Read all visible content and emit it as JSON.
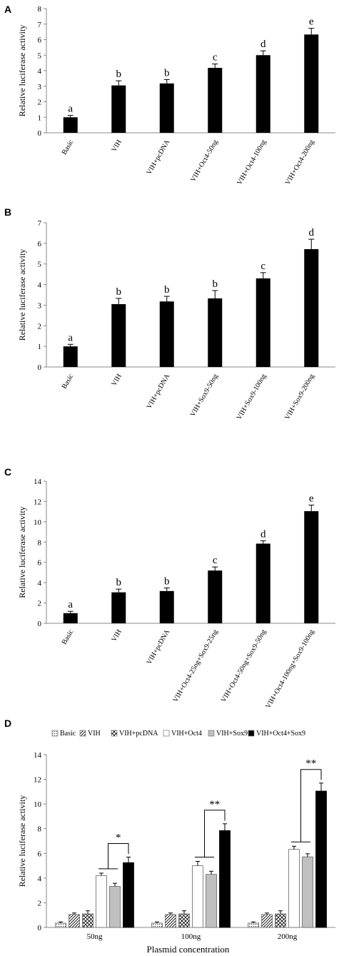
{
  "chart_data": [
    {
      "panel": "A",
      "type": "bar",
      "ylabel": "Relative luciferase activity",
      "ylim": [
        0,
        8
      ],
      "yticks": [
        0,
        1,
        2,
        3,
        4,
        5,
        6,
        7,
        8
      ],
      "categories": [
        "Basic",
        "VIH",
        "VIH+pcDNA",
        "VIH+Oct4-50ng",
        "VIH+Oct4-100ng",
        "VIH+Oct4-200ng"
      ],
      "values": [
        1.0,
        3.05,
        3.18,
        4.18,
        5.0,
        6.33
      ],
      "errors": [
        0.12,
        0.3,
        0.25,
        0.25,
        0.28,
        0.4
      ],
      "labels": [
        "a",
        "b",
        "b",
        "c",
        "d",
        "e"
      ],
      "colors": [
        "#000000"
      ]
    },
    {
      "panel": "B",
      "type": "bar",
      "ylabel": "Relative luciferase activity",
      "ylim": [
        0,
        7
      ],
      "yticks": [
        0,
        1,
        2,
        3,
        4,
        5,
        6,
        7
      ],
      "categories": [
        "Basic",
        "VIH",
        "VIH+pcDNA",
        "VIH+Sox9-50ng",
        "VIH+Sox9-100ng",
        "VIH+Sox9-200ng"
      ],
      "values": [
        1.0,
        3.05,
        3.18,
        3.33,
        4.3,
        5.72
      ],
      "errors": [
        0.1,
        0.28,
        0.25,
        0.38,
        0.28,
        0.48
      ],
      "labels": [
        "a",
        "b",
        "b",
        "b",
        "c",
        "d"
      ],
      "colors": [
        "#000000"
      ]
    },
    {
      "panel": "C",
      "type": "bar",
      "ylabel": "Relative luciferase activity",
      "ylim": [
        0,
        14
      ],
      "yticks": [
        0,
        2,
        4,
        6,
        8,
        10,
        12,
        14
      ],
      "categories": [
        "Basic",
        "VIH",
        "VIH+pcDNA",
        "VIH+Oct4-25ng+Sox9-25ng",
        "VIH+Oct4-50ng+Sox9-50ng",
        "VIH+Oct4-100ng+Sox9-100ng"
      ],
      "values": [
        1.0,
        3.05,
        3.18,
        5.2,
        7.85,
        11.05
      ],
      "errors": [
        0.18,
        0.32,
        0.3,
        0.35,
        0.28,
        0.6
      ],
      "labels": [
        "a",
        "b",
        "b",
        "c",
        "d",
        "e"
      ],
      "colors": [
        "#000000"
      ]
    },
    {
      "panel": "D",
      "type": "bar",
      "xlabel": "Plasmid concentration",
      "ylabel": "Relative luciferase activity",
      "ylim": [
        0,
        14
      ],
      "yticks": [
        0,
        2,
        4,
        6,
        8,
        10,
        12,
        14
      ],
      "categories": [
        "50ng",
        "100ng",
        "200ng"
      ],
      "legend_position": "top",
      "series": [
        {
          "name": "Basic",
          "values": [
            0.35,
            0.35,
            0.35
          ],
          "errors": [
            0.1,
            0.1,
            0.1
          ],
          "fill": "dots"
        },
        {
          "name": "VIH",
          "values": [
            1.05,
            1.05,
            1.05
          ],
          "errors": [
            0.12,
            0.12,
            0.12
          ],
          "fill": "hatch"
        },
        {
          "name": "VIH+pcDNA",
          "values": [
            1.1,
            1.1,
            1.1
          ],
          "errors": [
            0.25,
            0.25,
            0.25
          ],
          "fill": "crosshatch"
        },
        {
          "name": "VIH+Oct4",
          "values": [
            4.2,
            5.0,
            6.33
          ],
          "errors": [
            0.2,
            0.35,
            0.25
          ],
          "fill": "white"
        },
        {
          "name": "VIH+Sox9",
          "values": [
            3.33,
            4.3,
            5.72
          ],
          "errors": [
            0.25,
            0.25,
            0.25
          ],
          "fill": "gray"
        },
        {
          "name": "VIH+Oct4+Sox9",
          "values": [
            5.25,
            7.85,
            11.05
          ],
          "errors": [
            0.45,
            0.55,
            0.65
          ],
          "fill": "black"
        }
      ],
      "significance": [
        "*",
        "**",
        "**"
      ]
    }
  ]
}
